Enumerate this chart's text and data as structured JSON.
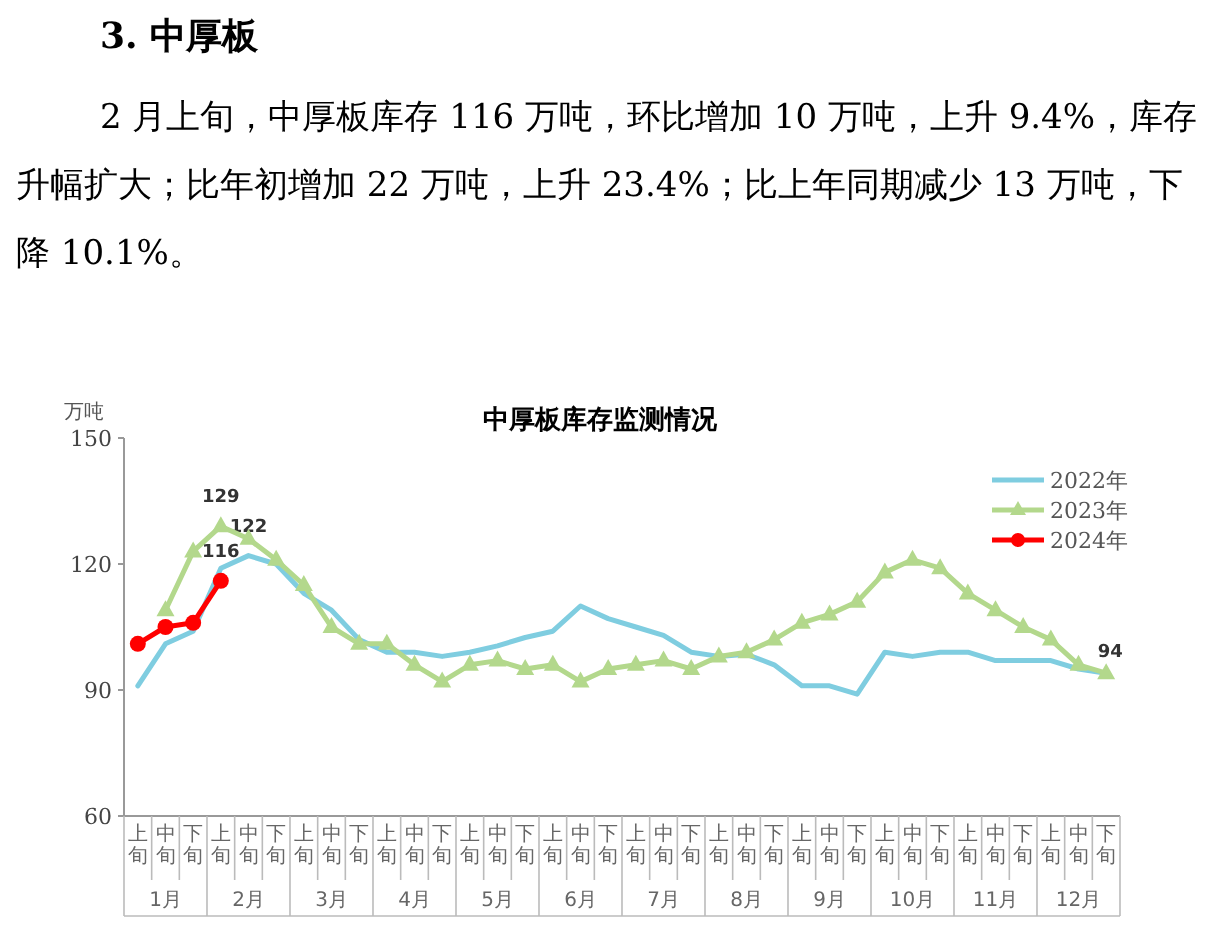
{
  "chart_data": {
    "type": "line",
    "title": "中厚板库存监测情况",
    "ylabel": "万吨",
    "categories": [
      "上旬",
      "中旬",
      "下旬",
      "上旬",
      "中旬",
      "下旬",
      "上旬",
      "中旬",
      "下旬",
      "上旬",
      "中旬",
      "下旬",
      "上旬",
      "中旬",
      "下旬",
      "上旬",
      "中旬",
      "下旬",
      "上旬",
      "中旬",
      "下旬",
      "上旬",
      "中旬",
      "下旬",
      "上旬",
      "中旬",
      "下旬",
      "上旬",
      "中旬",
      "下旬",
      "上旬",
      "中旬",
      "下旬",
      "上旬",
      "中旬",
      "下旬"
    ],
    "ylim": [
      60,
      150
    ],
    "yticks": [
      60,
      90,
      120,
      150
    ],
    "grid": false,
    "legend": "top right",
    "series": [
      {
        "name": "2022年",
        "color": "#7fcde0",
        "marker": "none",
        "values": [
          91,
          101,
          104,
          119,
          122,
          120,
          113,
          109,
          102,
          99,
          99,
          98,
          99,
          100.5,
          102.5,
          104,
          110,
          107,
          105,
          103,
          99,
          98,
          98.5,
          96,
          91,
          91,
          89,
          99,
          98,
          99,
          99,
          97,
          97,
          97,
          95,
          94
        ],
        "value_labels": [
          null,
          null,
          null,
          null,
          "122",
          null,
          null,
          null,
          null,
          null,
          null,
          null,
          null,
          null,
          null,
          null,
          null,
          null,
          null,
          null,
          null,
          null,
          null,
          null,
          null,
          null,
          null,
          null,
          null,
          null,
          null,
          null,
          null,
          null,
          null,
          null
        ]
      },
      {
        "name": "2023年",
        "color": "#b3d88c",
        "marker": "triangle",
        "values": [
          null,
          109,
          123,
          129,
          126,
          121,
          115,
          105,
          101,
          101,
          96,
          92,
          96,
          97,
          95,
          96,
          92,
          95,
          96,
          97,
          95,
          98,
          99,
          102,
          106,
          108,
          111,
          118,
          121,
          119,
          113,
          109,
          105,
          102,
          96,
          94
        ],
        "value_labels": [
          null,
          null,
          null,
          "129",
          null,
          null,
          null,
          null,
          null,
          null,
          null,
          null,
          null,
          null,
          null,
          null,
          null,
          null,
          null,
          null,
          null,
          null,
          null,
          null,
          null,
          null,
          null,
          null,
          null,
          null,
          null,
          null,
          null,
          null,
          null,
          "94"
        ]
      },
      {
        "name": "2024年",
        "color": "#ff0000",
        "marker": "circle",
        "values": [
          101,
          105,
          106,
          116,
          null,
          null,
          null,
          null,
          null,
          null,
          null,
          null,
          null,
          null,
          null,
          null,
          null,
          null,
          null,
          null,
          null,
          null,
          null,
          null,
          null,
          null,
          null,
          null,
          null,
          null,
          null,
          null,
          null,
          null,
          null,
          null
        ],
        "value_labels": [
          null,
          null,
          null,
          "116",
          null,
          null,
          null,
          null,
          null,
          null,
          null,
          null,
          null,
          null,
          null,
          null,
          null,
          null,
          null,
          null,
          null,
          null,
          null,
          null,
          null,
          null,
          null,
          null,
          null,
          null,
          null,
          null,
          null,
          null,
          null,
          null
        ]
      }
    ],
    "annotations": [
      "3. 中厚板",
      "2 月上旬，中厚板库存 116 万吨，环比增加 10 万吨，上升 9.4%，库存升幅扩大；比年初增加 22 万吨，上升 23.4%；比上年同期减少 13 万吨，下降 10.1%。",
      "1月",
      "2月",
      "3月",
      "4月",
      "5月",
      "6月",
      "7月",
      "8月",
      "9月",
      "10月",
      "11月",
      "12月"
    ]
  }
}
